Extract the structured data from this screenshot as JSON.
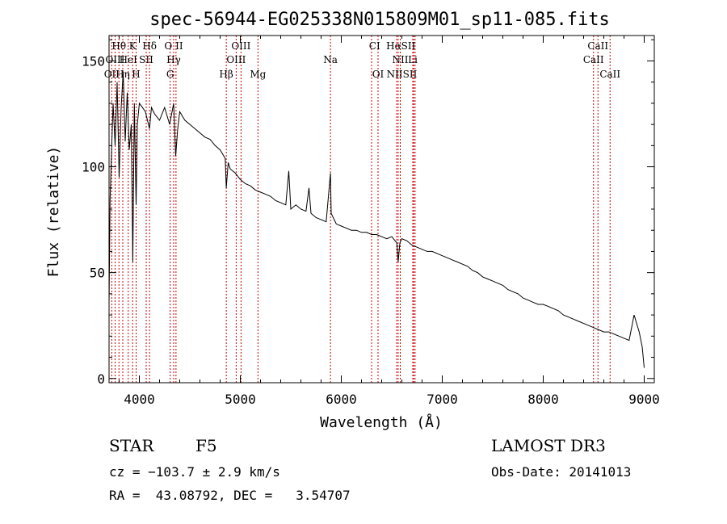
{
  "chart_data": {
    "type": "line",
    "title": "spec-56944-EG025338N015809M01_sp11-085.fits",
    "xlabel": "Wavelength (Å)",
    "ylabel": "Flux (relative)",
    "xlim": [
      3700,
      9100
    ],
    "ylim": [
      -2,
      162
    ],
    "xticks": [
      4000,
      5000,
      6000,
      7000,
      8000,
      9000
    ],
    "yticks": [
      0,
      50,
      100,
      150
    ],
    "grid": false,
    "series": [
      {
        "color": "#000000",
        "x": [
          3700,
          3710,
          3720,
          3740,
          3760,
          3780,
          3800,
          3820,
          3840,
          3860,
          3880,
          3900,
          3920,
          3935,
          3950,
          3968,
          3980,
          4000,
          4030,
          4060,
          4080,
          4101,
          4120,
          4150,
          4200,
          4250,
          4300,
          4340,
          4360,
          4380,
          4400,
          4450,
          4500,
          4550,
          4600,
          4650,
          4700,
          4750,
          4800,
          4850,
          4861,
          4880,
          4900,
          4950,
          5000,
          5050,
          5100,
          5150,
          5200,
          5250,
          5300,
          5350,
          5400,
          5450,
          5480,
          5500,
          5550,
          5600,
          5650,
          5680,
          5700,
          5750,
          5800,
          5850,
          5893,
          5900,
          5950,
          6000,
          6050,
          6100,
          6150,
          6200,
          6250,
          6300,
          6350,
          6400,
          6450,
          6500,
          6550,
          6563,
          6580,
          6600,
          6650,
          6700,
          6750,
          6800,
          6850,
          6900,
          6950,
          7000,
          7050,
          7100,
          7150,
          7200,
          7250,
          7300,
          7350,
          7400,
          7450,
          7500,
          7550,
          7600,
          7650,
          7700,
          7750,
          7800,
          7850,
          7900,
          7950,
          8000,
          8050,
          8100,
          8150,
          8200,
          8250,
          8300,
          8350,
          8400,
          8450,
          8500,
          8550,
          8600,
          8650,
          8700,
          8750,
          8800,
          8850,
          8900,
          8950,
          8980,
          9000
        ],
        "values": [
          35,
          85,
          100,
          130,
          110,
          140,
          95,
          128,
          145,
          112,
          135,
          108,
          120,
          55,
          130,
          82,
          120,
          130,
          128,
          126,
          122,
          118,
          128,
          125,
          122,
          128,
          120,
          130,
          105,
          118,
          126,
          122,
          120,
          118,
          116,
          114,
          113,
          110,
          108,
          104,
          90,
          102,
          99,
          97,
          94,
          92,
          91,
          89,
          88,
          87,
          86,
          84,
          83,
          82,
          98,
          80,
          82,
          80,
          79,
          90,
          78,
          76,
          75,
          74,
          97,
          78,
          73,
          72,
          71,
          70,
          70,
          69,
          69,
          68,
          68,
          67,
          66,
          67,
          64,
          55,
          64,
          66,
          65,
          63,
          62,
          61,
          60,
          60,
          59,
          58,
          57,
          56,
          55,
          54,
          53,
          51,
          50,
          48,
          47,
          46,
          45,
          44,
          42,
          41,
          40,
          38,
          37,
          36,
          35,
          35,
          34,
          33,
          32,
          30,
          29,
          28,
          27,
          26,
          25,
          24,
          23,
          22,
          22,
          21,
          20,
          19,
          18,
          30,
          22,
          15,
          5
        ]
      }
    ],
    "line_labels": [
      {
        "label": "Hθ",
        "x": 3798,
        "row": 0
      },
      {
        "label": "K",
        "x": 3934,
        "row": 0
      },
      {
        "label": "Hδ",
        "x": 4101,
        "row": 0
      },
      {
        "label": "O II",
        "x": 4340,
        "row": 0
      },
      {
        "label": "OIII",
        "x": 5007,
        "row": 0
      },
      {
        "label": "CI",
        "x": 6330,
        "row": 0
      },
      {
        "label": "HαSII",
        "x": 6590,
        "row": 0
      },
      {
        "label": "CaII",
        "x": 8542,
        "row": 0
      },
      {
        "label": "OIII",
        "x": 3760,
        "row": 1
      },
      {
        "label": "HeI",
        "x": 3890,
        "row": 1
      },
      {
        "label": "SII",
        "x": 4068,
        "row": 1
      },
      {
        "label": "Hγ",
        "x": 4340,
        "row": 1
      },
      {
        "label": "OIII",
        "x": 4959,
        "row": 1
      },
      {
        "label": "Na",
        "x": 5893,
        "row": 1
      },
      {
        "label": "NII",
        "x": 6584,
        "row": 1
      },
      {
        "label": "Li",
        "x": 6708,
        "row": 1
      },
      {
        "label": "CaII",
        "x": 8498,
        "row": 1
      },
      {
        "label": "OII",
        "x": 3727,
        "row": 2
      },
      {
        "label": "Hη",
        "x": 3836,
        "row": 2
      },
      {
        "label": "H",
        "x": 3968,
        "row": 2
      },
      {
        "label": "G",
        "x": 4305,
        "row": 2
      },
      {
        "label": "Hβ",
        "x": 4861,
        "row": 2
      },
      {
        "label": "Mg",
        "x": 5175,
        "row": 2
      },
      {
        "label": "OI",
        "x": 6364,
        "row": 2
      },
      {
        "label": "NIISII",
        "x": 6600,
        "row": 2
      },
      {
        "label": "CaII",
        "x": 8662,
        "row": 2
      }
    ],
    "line_markers_x": [
      3727,
      3760,
      3798,
      3836,
      3890,
      3934,
      3968,
      4068,
      4101,
      4305,
      4340,
      4363,
      4861,
      4959,
      5007,
      5175,
      5893,
      6300,
      6364,
      6548,
      6563,
      6584,
      6708,
      6717,
      6731,
      8498,
      8542,
      8662
    ],
    "marker_color": "#cc0000"
  },
  "info": {
    "class_label": "STAR",
    "subclass_label": "F5",
    "redshift_text": "cz = −103.7 ± 2.9 km/s",
    "coords_text": "RA =  43.08792, DEC =   3.54707",
    "survey_label": "LAMOST DR3",
    "obs_date_text": "Obs-Date: 20141013"
  }
}
